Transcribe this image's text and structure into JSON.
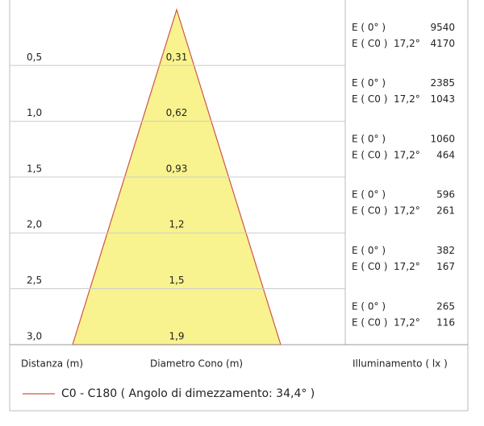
{
  "rows": [
    {
      "distance": "0,5",
      "diameter": "0,31",
      "e0": 9540,
      "ec0": 4170
    },
    {
      "distance": "1,0",
      "diameter": "0,62",
      "e0": 2385,
      "ec0": 1043
    },
    {
      "distance": "1,5",
      "diameter": "0,93",
      "e0": 1060,
      "ec0": 464
    },
    {
      "distance": "2,0",
      "diameter": "1,2",
      "e0": 596,
      "ec0": 261
    },
    {
      "distance": "2,5",
      "diameter": "1,5",
      "e0": 382,
      "ec0": 167
    },
    {
      "distance": "3,0",
      "diameter": "1,9",
      "e0": 265,
      "ec0": 116
    }
  ],
  "labels": {
    "e0": "E ( 0° )",
    "ec0": "E ( C0 )",
    "half_angle": "17,2°"
  },
  "footer": {
    "distance": "Distanza (m)",
    "diameter": "Diametro Cono (m)",
    "illuminance": "Illuminamento ( lx )"
  },
  "legend": "C0 - C180  ( Angolo di dimezzamento: 34,4° )"
}
